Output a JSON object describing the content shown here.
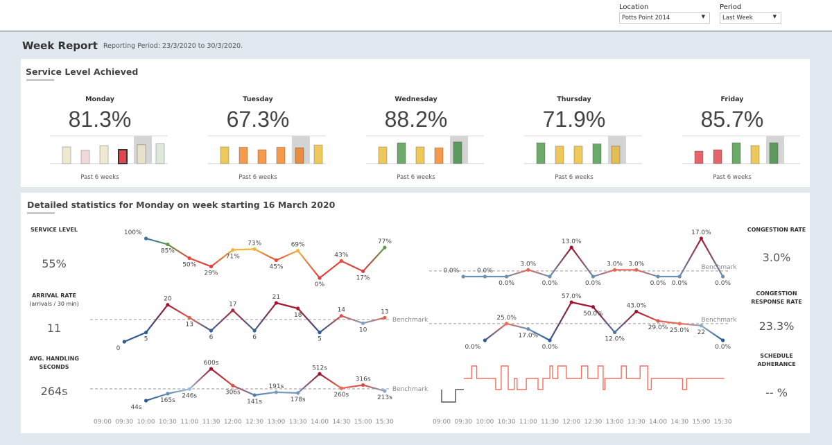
{
  "filters": {
    "location_label": "Location",
    "location_value": "Potts Point 2014",
    "period_label": "Period",
    "period_value": "Last Week"
  },
  "header": {
    "title": "Week Report",
    "reporting_period": "Reporting Period:  23/3/2020  to  30/3/2020."
  },
  "service_level": {
    "title": "Service Level Achieved",
    "past_label": "Past 6 weeks",
    "days": [
      {
        "name": "Monday",
        "value": "81.3%",
        "bars": [
          0.6,
          0.48,
          0.65,
          0.5,
          0.68,
          0.72
        ],
        "colors": [
          "#efe9d2",
          "#f1d8db",
          "#efe9d2",
          "#e0484e",
          "#e9e2ca",
          "#dee8da"
        ],
        "highlight": 3,
        "shade": 4
      },
      {
        "name": "Tuesday",
        "value": "67.3%",
        "bars": [
          0.6,
          0.59,
          0.5,
          0.59,
          0.57,
          0.67
        ],
        "colors": [
          "#ecc95a",
          "#f39a4c",
          "#f39a4c",
          "#f39a4c",
          "#e88c40",
          "#ecc95a"
        ],
        "highlight": -1,
        "shade": 4
      },
      {
        "name": "Wednesday",
        "value": "88.2%",
        "bars": [
          0.6,
          0.75,
          0.6,
          0.57,
          0.78
        ],
        "colors": [
          "#ecc95a",
          "#6caa6a",
          "#ecc95a",
          "#f39a4c",
          "#5f9a5e"
        ],
        "highlight": -1,
        "shade": 4
      },
      {
        "name": "Thursday",
        "value": "71.9%",
        "bars": [
          0.75,
          0.63,
          0.63,
          0.71,
          0.63
        ],
        "colors": [
          "#6caa6a",
          "#ecc95a",
          "#ecc95a",
          "#6caa6a",
          "#e3be55"
        ],
        "highlight": -1,
        "shade": 4
      },
      {
        "name": "Friday",
        "value": "85.7%",
        "bars": [
          0.45,
          0.5,
          0.75,
          0.65,
          0.75
        ],
        "colors": [
          "#e3646a",
          "#e3646a",
          "#6caa6a",
          "#ecc95a",
          "#5f9a5e"
        ],
        "highlight": -1,
        "shade": 4
      }
    ]
  },
  "details": {
    "title": "Detailed statistics for Monday on week starting 16 March 2020",
    "metrics": {
      "service_level": {
        "label": "SERVICE LEVEL",
        "value": "55%"
      },
      "arrival_rate": {
        "label": "ARRIVAL RATE",
        "sublabel": "(arrivals / 30 min)",
        "value": "11"
      },
      "aht": {
        "label": "AVG. HANDLING SECONDS",
        "value": "264s"
      },
      "congestion": {
        "label": "CONGESTION RATE",
        "value": "3.0%"
      },
      "congestion_response": {
        "label": "CONGESTION RESPONSE RATE",
        "value": "23.3%"
      },
      "schedule": {
        "label": "SCHEDULE ADHERANCE",
        "value": "-- %"
      }
    }
  },
  "chart_data": [
    {
      "type": "line",
      "id": "service_level",
      "x": [
        "10:00",
        "10:30",
        "11:00",
        "11:30",
        "12:00",
        "12:30",
        "13:00",
        "13:30",
        "14:00",
        "14:30",
        "15:00",
        "15:30"
      ],
      "values": [
        100,
        85,
        50,
        29,
        71,
        73,
        45,
        69,
        0,
        43,
        17,
        77
      ],
      "labels": [
        "100%",
        "85%",
        "50%",
        "29%",
        "71%",
        "73%",
        "45%",
        "69%",
        "0%",
        "43%",
        "17%",
        "77%"
      ],
      "ylim": [
        0,
        100
      ]
    },
    {
      "type": "line",
      "id": "arrival_rate",
      "x": [
        "09:30",
        "10:00",
        "10:30",
        "11:00",
        "11:30",
        "12:00",
        "12:30",
        "13:00",
        "13:30",
        "14:00",
        "14:30",
        "15:00",
        "15:30"
      ],
      "values": [
        0,
        5,
        20,
        13,
        6,
        17,
        6,
        21,
        18,
        5,
        14,
        10,
        13
      ],
      "labels": [
        "0",
        "5",
        "20",
        "13",
        "6",
        "17",
        "6",
        "21",
        "18",
        "5",
        "14",
        "10",
        "13"
      ],
      "benchmark": 12,
      "benchmark_label": "Benchmark",
      "ylim": [
        0,
        21
      ]
    },
    {
      "type": "line",
      "id": "aht",
      "x": [
        "10:00",
        "10:30",
        "11:00",
        "11:30",
        "12:00",
        "12:30",
        "13:00",
        "13:30",
        "14:00",
        "14:30",
        "15:00",
        "15:30"
      ],
      "values": [
        44,
        165,
        246,
        600,
        306,
        141,
        191,
        178,
        512,
        260,
        316,
        213
      ],
      "labels": [
        "44s",
        "165s",
        "246s",
        "600s",
        "306s",
        "141s",
        "191s",
        "178s",
        "512s",
        "260s",
        "316s",
        "213s"
      ],
      "benchmark": 250,
      "benchmark_label": "Benchmark",
      "ylim": [
        44,
        600
      ]
    },
    {
      "type": "line",
      "id": "congestion",
      "x": [
        "09:30",
        "10:00",
        "10:30",
        "11:00",
        "11:30",
        "12:00",
        "12:30",
        "13:00",
        "13:30",
        "14:00",
        "14:30",
        "15:00",
        "15:30"
      ],
      "values": [
        0,
        0,
        0,
        3,
        0,
        13,
        0,
        3,
        3,
        0,
        0,
        17,
        0
      ],
      "labels": [
        "0.0%",
        "0.0%",
        "0.0%",
        "3.0%",
        "0.0%",
        "13.0%",
        "0.0%",
        "3.0%",
        "3.0%",
        "0.0%",
        "0.0%",
        "17.0%",
        "0.0%"
      ],
      "benchmark": 2.5,
      "benchmark_label": "Benchmark",
      "ylim": [
        0,
        17
      ]
    },
    {
      "type": "line",
      "id": "congestion_response",
      "x": [
        "10:00",
        "10:30",
        "11:00",
        "11:30",
        "12:00",
        "12:30",
        "13:00",
        "13:30",
        "14:00",
        "14:30",
        "15:00",
        "15:30"
      ],
      "values": [
        0,
        25,
        17,
        0,
        57,
        50,
        12,
        43,
        29,
        25,
        22,
        0
      ],
      "labels": [
        "0.0%",
        "25.0%",
        "17.0%",
        "0.0%",
        "57.0%",
        "50.0%",
        "12.0%",
        "43.0%",
        "29.0%",
        "25.0%",
        "22",
        "0.0%"
      ],
      "benchmark": 25,
      "benchmark_label": "Benchmark",
      "ylim": [
        0,
        57
      ]
    },
    {
      "type": "line",
      "id": "schedule_adherance"
    }
  ],
  "x_ticks": [
    "09:00",
    "09:30",
    "10:00",
    "10:30",
    "11:00",
    "11:30",
    "12:00",
    "12:30",
    "13:00",
    "13:30",
    "14:00",
    "14:30",
    "15:00",
    "15:30"
  ]
}
